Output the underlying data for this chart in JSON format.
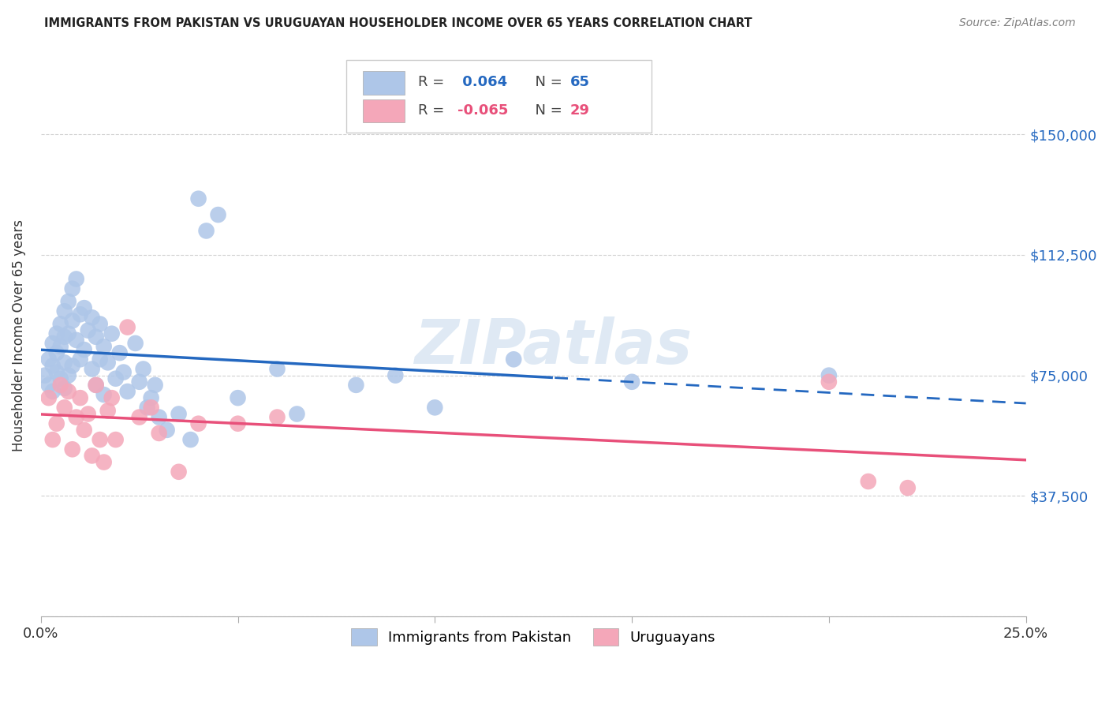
{
  "title": "IMMIGRANTS FROM PAKISTAN VS URUGUAYAN HOUSEHOLDER INCOME OVER 65 YEARS CORRELATION CHART",
  "source": "Source: ZipAtlas.com",
  "ylabel": "Householder Income Over 65 years",
  "xlim": [
    0.0,
    0.25
  ],
  "ylim": [
    0,
    175000
  ],
  "yticks": [
    0,
    37500,
    75000,
    112500,
    150000
  ],
  "ytick_labels": [
    "",
    "$37,500",
    "$75,000",
    "$112,500",
    "$150,000"
  ],
  "xticks": [
    0.0,
    0.05,
    0.1,
    0.15,
    0.2,
    0.25
  ],
  "xtick_labels": [
    "0.0%",
    "",
    "",
    "",
    "",
    "25.0%"
  ],
  "legend1_R": "0.064",
  "legend1_N": "65",
  "legend2_R": "-0.065",
  "legend2_N": "29",
  "blue_color": "#aec6e8",
  "pink_color": "#f4a7b9",
  "blue_line_color": "#2468c0",
  "pink_line_color": "#e8507a",
  "watermark": "ZIPatlas",
  "blue_x": [
    0.001,
    0.002,
    0.002,
    0.003,
    0.003,
    0.003,
    0.004,
    0.004,
    0.004,
    0.005,
    0.005,
    0.005,
    0.006,
    0.006,
    0.006,
    0.006,
    0.007,
    0.007,
    0.007,
    0.008,
    0.008,
    0.008,
    0.009,
    0.009,
    0.01,
    0.01,
    0.011,
    0.011,
    0.012,
    0.013,
    0.013,
    0.014,
    0.014,
    0.015,
    0.015,
    0.016,
    0.016,
    0.017,
    0.018,
    0.019,
    0.02,
    0.021,
    0.022,
    0.024,
    0.025,
    0.026,
    0.027,
    0.028,
    0.029,
    0.03,
    0.032,
    0.035,
    0.038,
    0.04,
    0.042,
    0.045,
    0.05,
    0.06,
    0.065,
    0.08,
    0.09,
    0.1,
    0.12,
    0.15,
    0.2
  ],
  "blue_y": [
    75000,
    80000,
    72000,
    85000,
    78000,
    70000,
    88000,
    82000,
    76000,
    91000,
    84000,
    74000,
    95000,
    87000,
    79000,
    71000,
    98000,
    88000,
    75000,
    102000,
    92000,
    78000,
    105000,
    86000,
    94000,
    80000,
    96000,
    83000,
    89000,
    93000,
    77000,
    87000,
    72000,
    91000,
    80000,
    84000,
    69000,
    79000,
    88000,
    74000,
    82000,
    76000,
    70000,
    85000,
    73000,
    77000,
    65000,
    68000,
    72000,
    62000,
    58000,
    63000,
    55000,
    130000,
    120000,
    125000,
    68000,
    77000,
    63000,
    72000,
    75000,
    65000,
    80000,
    73000,
    75000
  ],
  "pink_x": [
    0.002,
    0.003,
    0.004,
    0.005,
    0.006,
    0.007,
    0.008,
    0.009,
    0.01,
    0.011,
    0.012,
    0.013,
    0.014,
    0.015,
    0.016,
    0.017,
    0.018,
    0.019,
    0.022,
    0.025,
    0.028,
    0.03,
    0.035,
    0.04,
    0.05,
    0.06,
    0.2,
    0.21,
    0.22
  ],
  "pink_y": [
    68000,
    55000,
    60000,
    72000,
    65000,
    70000,
    52000,
    62000,
    68000,
    58000,
    63000,
    50000,
    72000,
    55000,
    48000,
    64000,
    68000,
    55000,
    90000,
    62000,
    65000,
    57000,
    45000,
    60000,
    60000,
    62000,
    73000,
    42000,
    40000
  ]
}
